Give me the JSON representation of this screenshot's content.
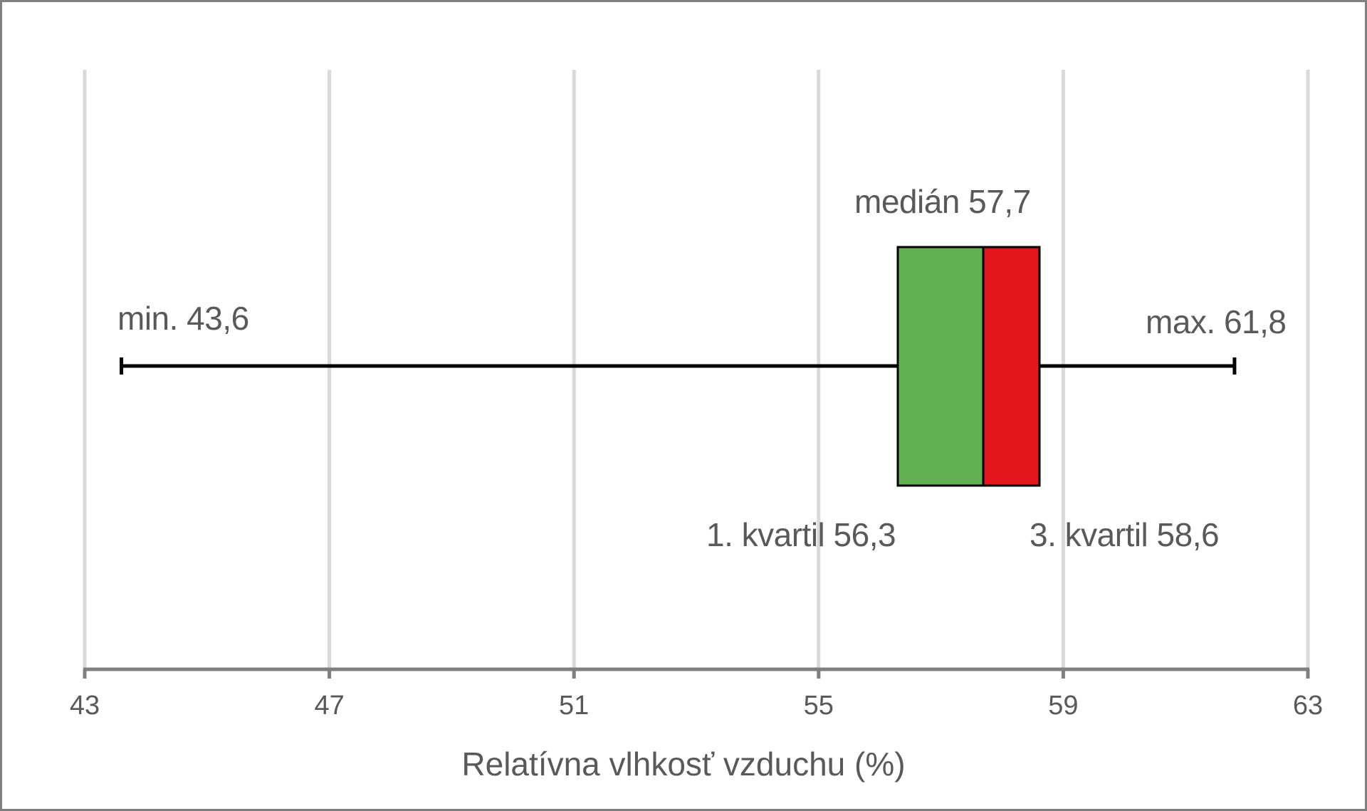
{
  "chart_data": {
    "type": "boxplot",
    "orientation": "horizontal",
    "title": "",
    "xlabel": "Relatívna vlhkosť vzduchu (%)",
    "ylabel": "",
    "xlim": [
      43,
      63
    ],
    "x_ticks": [
      43,
      47,
      51,
      55,
      59,
      63
    ],
    "grid": true,
    "legend": null,
    "stats": {
      "min": 43.6,
      "q1": 56.3,
      "median": 57.7,
      "q3": 58.6,
      "max": 61.8
    },
    "colors": {
      "lower_box": "#62af53",
      "upper_box": "#e3161e",
      "whisker": "#000000",
      "grid": "#d9d9d9",
      "axis": "#7f7f7f",
      "text": "#595959"
    },
    "annotations": {
      "min": "min. 43,6",
      "max": "max. 61,8",
      "median": "medián 57,7",
      "q1": "1. kvartil 56,3",
      "q3": "3. kvartil 58,6"
    }
  },
  "axis": {
    "tick_labels": [
      "43",
      "47",
      "51",
      "55",
      "59",
      "63"
    ],
    "title": "Relatívna vlhkosť vzduchu (%)"
  }
}
